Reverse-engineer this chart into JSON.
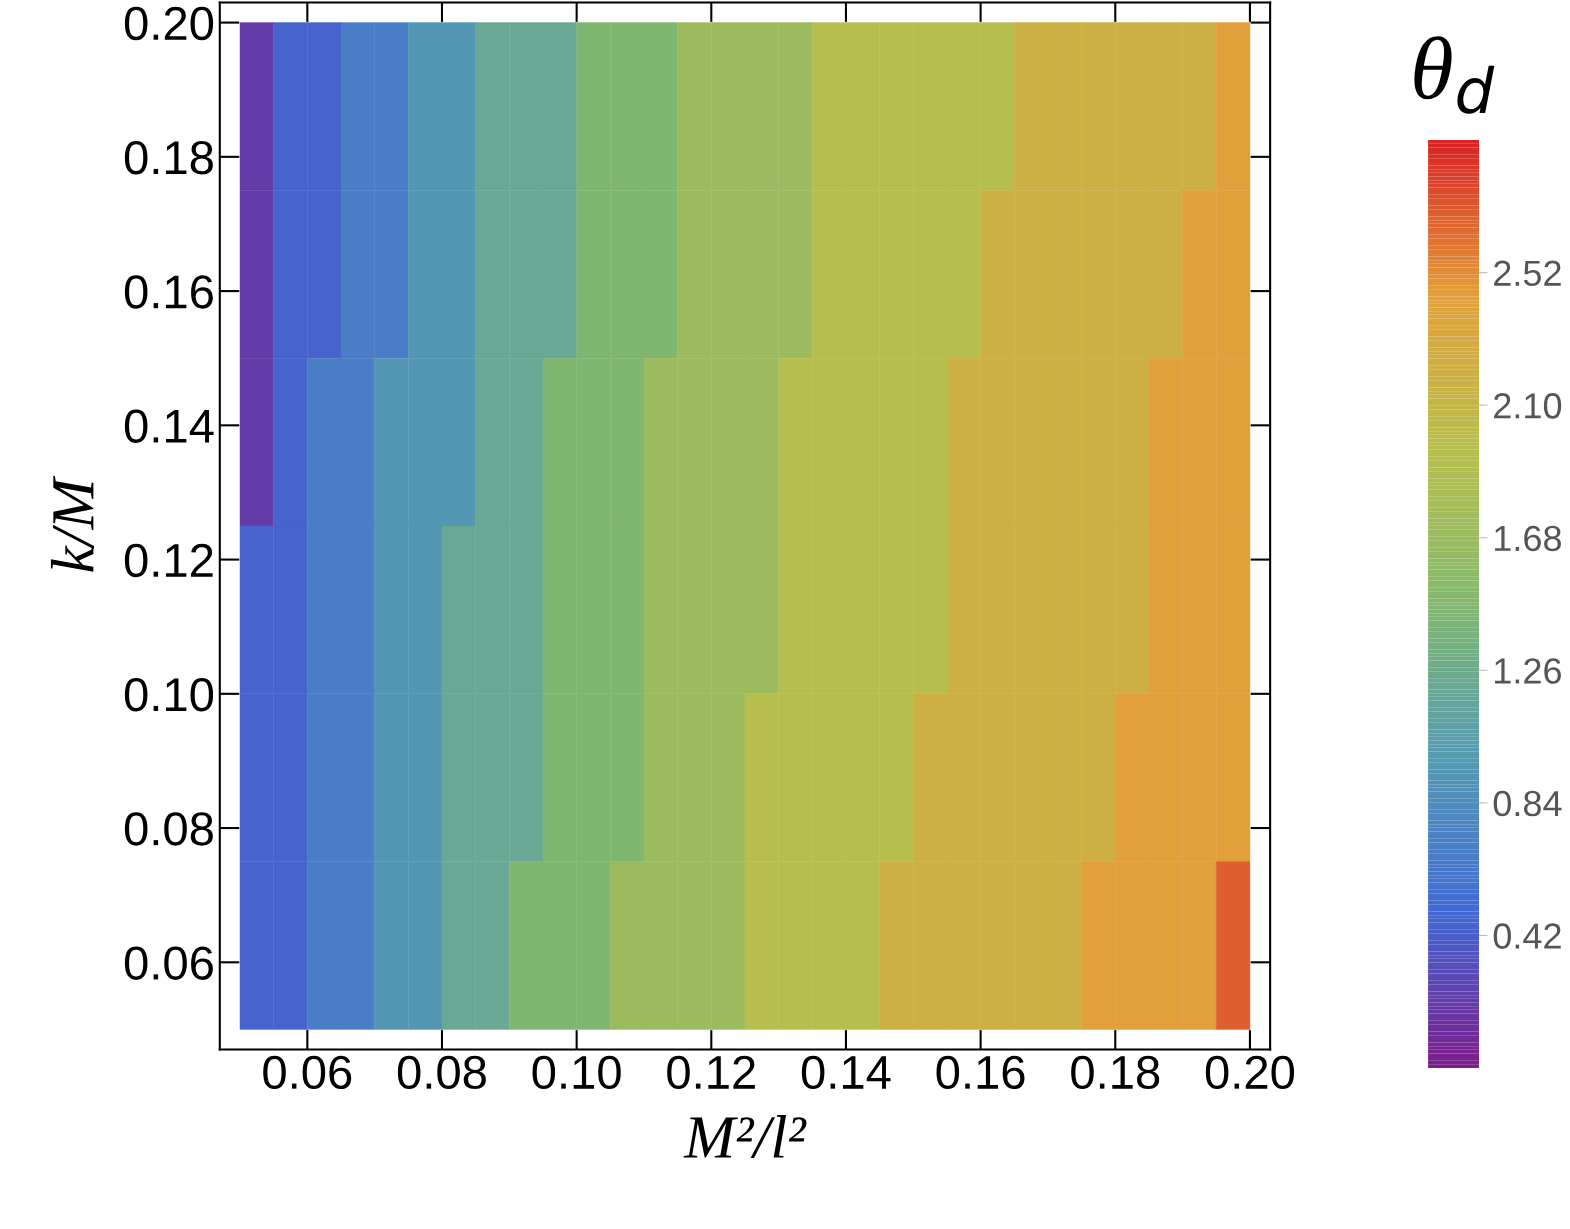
{
  "chart_data": {
    "type": "heatmap",
    "xlabel": "M²/l²",
    "ylabel": "k/M",
    "clabel": "θ$_{d}$",
    "x": [
      0.0525,
      0.0575,
      0.0625,
      0.0675,
      0.0725,
      0.0775,
      0.0825,
      0.0875,
      0.0925,
      0.0975,
      0.1025,
      0.1075,
      0.1125,
      0.1175,
      0.1225,
      0.1275,
      0.1325,
      0.1375,
      0.1425,
      0.1475,
      0.1525,
      0.1575,
      0.1625,
      0.1675,
      0.1725,
      0.1775,
      0.1825,
      0.1875,
      0.1925,
      0.1975
    ],
    "y": [
      0.1875,
      0.1625,
      0.1375,
      0.1125,
      0.0875,
      0.0625
    ],
    "cells": [
      [
        0.2,
        0.45,
        0.45,
        0.7,
        0.7,
        0.95,
        0.95,
        1.2,
        1.2,
        1.2,
        1.45,
        1.45,
        1.45,
        1.7,
        1.7,
        1.7,
        1.7,
        1.95,
        1.95,
        1.95,
        1.95,
        1.95,
        1.95,
        2.2,
        2.2,
        2.2,
        2.2,
        2.2,
        2.2,
        2.45
      ],
      [
        0.2,
        0.45,
        0.45,
        0.7,
        0.7,
        0.95,
        0.95,
        1.2,
        1.2,
        1.2,
        1.45,
        1.45,
        1.45,
        1.7,
        1.7,
        1.7,
        1.7,
        1.95,
        1.95,
        1.95,
        1.95,
        1.95,
        2.2,
        2.2,
        2.2,
        2.2,
        2.2,
        2.2,
        2.45,
        2.45
      ],
      [
        0.2,
        0.45,
        0.7,
        0.7,
        0.95,
        0.95,
        0.95,
        1.2,
        1.2,
        1.45,
        1.45,
        1.45,
        1.7,
        1.7,
        1.7,
        1.7,
        1.95,
        1.95,
        1.95,
        1.95,
        1.95,
        2.2,
        2.2,
        2.2,
        2.2,
        2.2,
        2.2,
        2.45,
        2.45,
        2.45
      ],
      [
        0.45,
        0.45,
        0.7,
        0.7,
        0.95,
        0.95,
        1.2,
        1.2,
        1.2,
        1.45,
        1.45,
        1.45,
        1.7,
        1.7,
        1.7,
        1.7,
        1.95,
        1.95,
        1.95,
        1.95,
        1.95,
        2.2,
        2.2,
        2.2,
        2.2,
        2.2,
        2.2,
        2.45,
        2.45,
        2.45
      ],
      [
        0.45,
        0.45,
        0.7,
        0.7,
        0.95,
        0.95,
        1.2,
        1.2,
        1.2,
        1.45,
        1.45,
        1.45,
        1.7,
        1.7,
        1.7,
        1.95,
        1.95,
        1.95,
        1.95,
        1.95,
        2.2,
        2.2,
        2.2,
        2.2,
        2.2,
        2.2,
        2.45,
        2.45,
        2.45,
        2.45
      ],
      [
        0.45,
        0.45,
        0.7,
        0.7,
        0.95,
        0.95,
        1.2,
        1.2,
        1.45,
        1.45,
        1.45,
        1.7,
        1.7,
        1.7,
        1.7,
        1.95,
        1.95,
        1.95,
        1.95,
        2.2,
        2.2,
        2.2,
        2.2,
        2.2,
        2.2,
        2.45,
        2.45,
        2.45,
        2.45,
        2.7
      ]
    ],
    "colors": [
      "#7b1c8a",
      "#4169d4",
      "#549bb3",
      "#82b86e",
      "#b7bf4c",
      "#e3a03a",
      "#d92325"
    ],
    "clim": [
      0,
      2.94
    ],
    "cticks": [
      {
        "value": 0.42,
        "label": "0.42"
      },
      {
        "value": 0.84,
        "label": "0.84"
      },
      {
        "value": 1.26,
        "label": "1.26"
      },
      {
        "value": 1.68,
        "label": "1.68"
      },
      {
        "value": 2.1,
        "label": "2.10"
      },
      {
        "value": 2.52,
        "label": "2.52"
      }
    ],
    "xlim": [
      0.047,
      0.203
    ],
    "ylim": [
      0.047,
      0.203
    ],
    "xticks": [
      {
        "value": 0.06,
        "label": "0.06"
      },
      {
        "value": 0.08,
        "label": "0.08"
      },
      {
        "value": 0.1,
        "label": "0.10"
      },
      {
        "value": 0.12,
        "label": "0.12"
      },
      {
        "value": 0.14,
        "label": "0.14"
      },
      {
        "value": 0.16,
        "label": "0.16"
      },
      {
        "value": 0.18,
        "label": "0.18"
      },
      {
        "value": 0.2,
        "label": "0.20"
      }
    ],
    "yticks": [
      {
        "value": 0.06,
        "label": "0.06"
      },
      {
        "value": 0.08,
        "label": "0.08"
      },
      {
        "value": 0.1,
        "label": "0.10"
      },
      {
        "value": 0.12,
        "label": "0.12"
      },
      {
        "value": 0.14,
        "label": "0.14"
      },
      {
        "value": 0.16,
        "label": "0.16"
      },
      {
        "value": 0.18,
        "label": "0.18"
      },
      {
        "value": 0.2,
        "label": "0.20"
      }
    ],
    "grid": false
  }
}
